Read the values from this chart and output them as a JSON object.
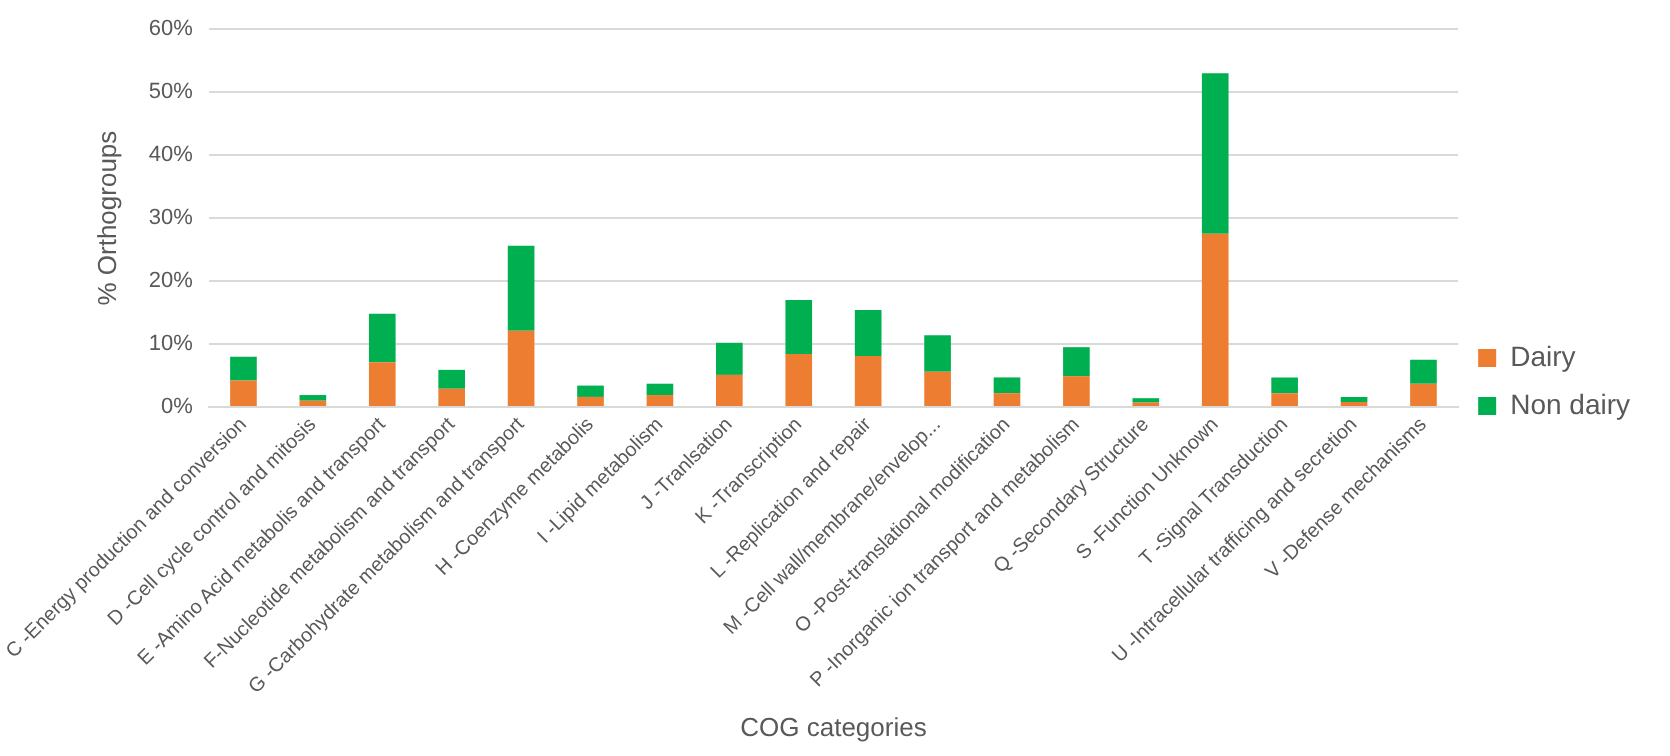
{
  "chart_data": {
    "type": "bar",
    "stacked": true,
    "xlabel": "COG categories",
    "ylabel": "% Orthogroups",
    "categories": [
      "C -Energy production and conversion",
      "D -Cell cycle control and mitosis",
      "E -Amino Acid metabolis and transport",
      "F-Nucleotide metabolism and transport",
      "G -Carbohydrate metabolism and transport",
      "H -Coenzyme metabolis",
      "I -Lipid metabolism",
      "J -Tranlsation",
      "K -Transcription",
      "L -Replication and repair",
      "M -Cell wall/membrane/envelop...",
      "O -Post-translational modification",
      "P -Inorganic ion transport and metabolism",
      "Q -Secondary Structure",
      "S -Function Unknown",
      "T -Signal Transduction",
      "U -Intracellular trafficing and secretion",
      "V -Defense mechanisms"
    ],
    "series": [
      {
        "name": "Dairy",
        "color": "#ed7d31",
        "values": [
          4.2,
          1.0,
          7.1,
          2.9,
          12.1,
          1.6,
          1.9,
          5.1,
          8.4,
          8.1,
          5.6,
          2.2,
          4.9,
          0.7,
          27.5,
          2.2,
          0.8,
          3.7
        ]
      },
      {
        "name": "Non dairy",
        "color": "#00b050",
        "values": [
          3.8,
          0.9,
          7.7,
          3.0,
          13.5,
          1.8,
          1.8,
          5.1,
          8.6,
          7.3,
          5.8,
          2.5,
          4.6,
          0.7,
          25.5,
          2.5,
          0.8,
          3.8
        ]
      }
    ],
    "ylim": [
      0,
      60
    ],
    "yticks": [
      {
        "value": 0,
        "label": "0%"
      },
      {
        "value": 10,
        "label": "10%"
      },
      {
        "value": 20,
        "label": "20%"
      },
      {
        "value": 30,
        "label": "30%"
      },
      {
        "value": 40,
        "label": "40%"
      },
      {
        "value": 50,
        "label": "50%"
      },
      {
        "value": 60,
        "label": "60%"
      }
    ],
    "grid": "y",
    "legend": "right"
  }
}
